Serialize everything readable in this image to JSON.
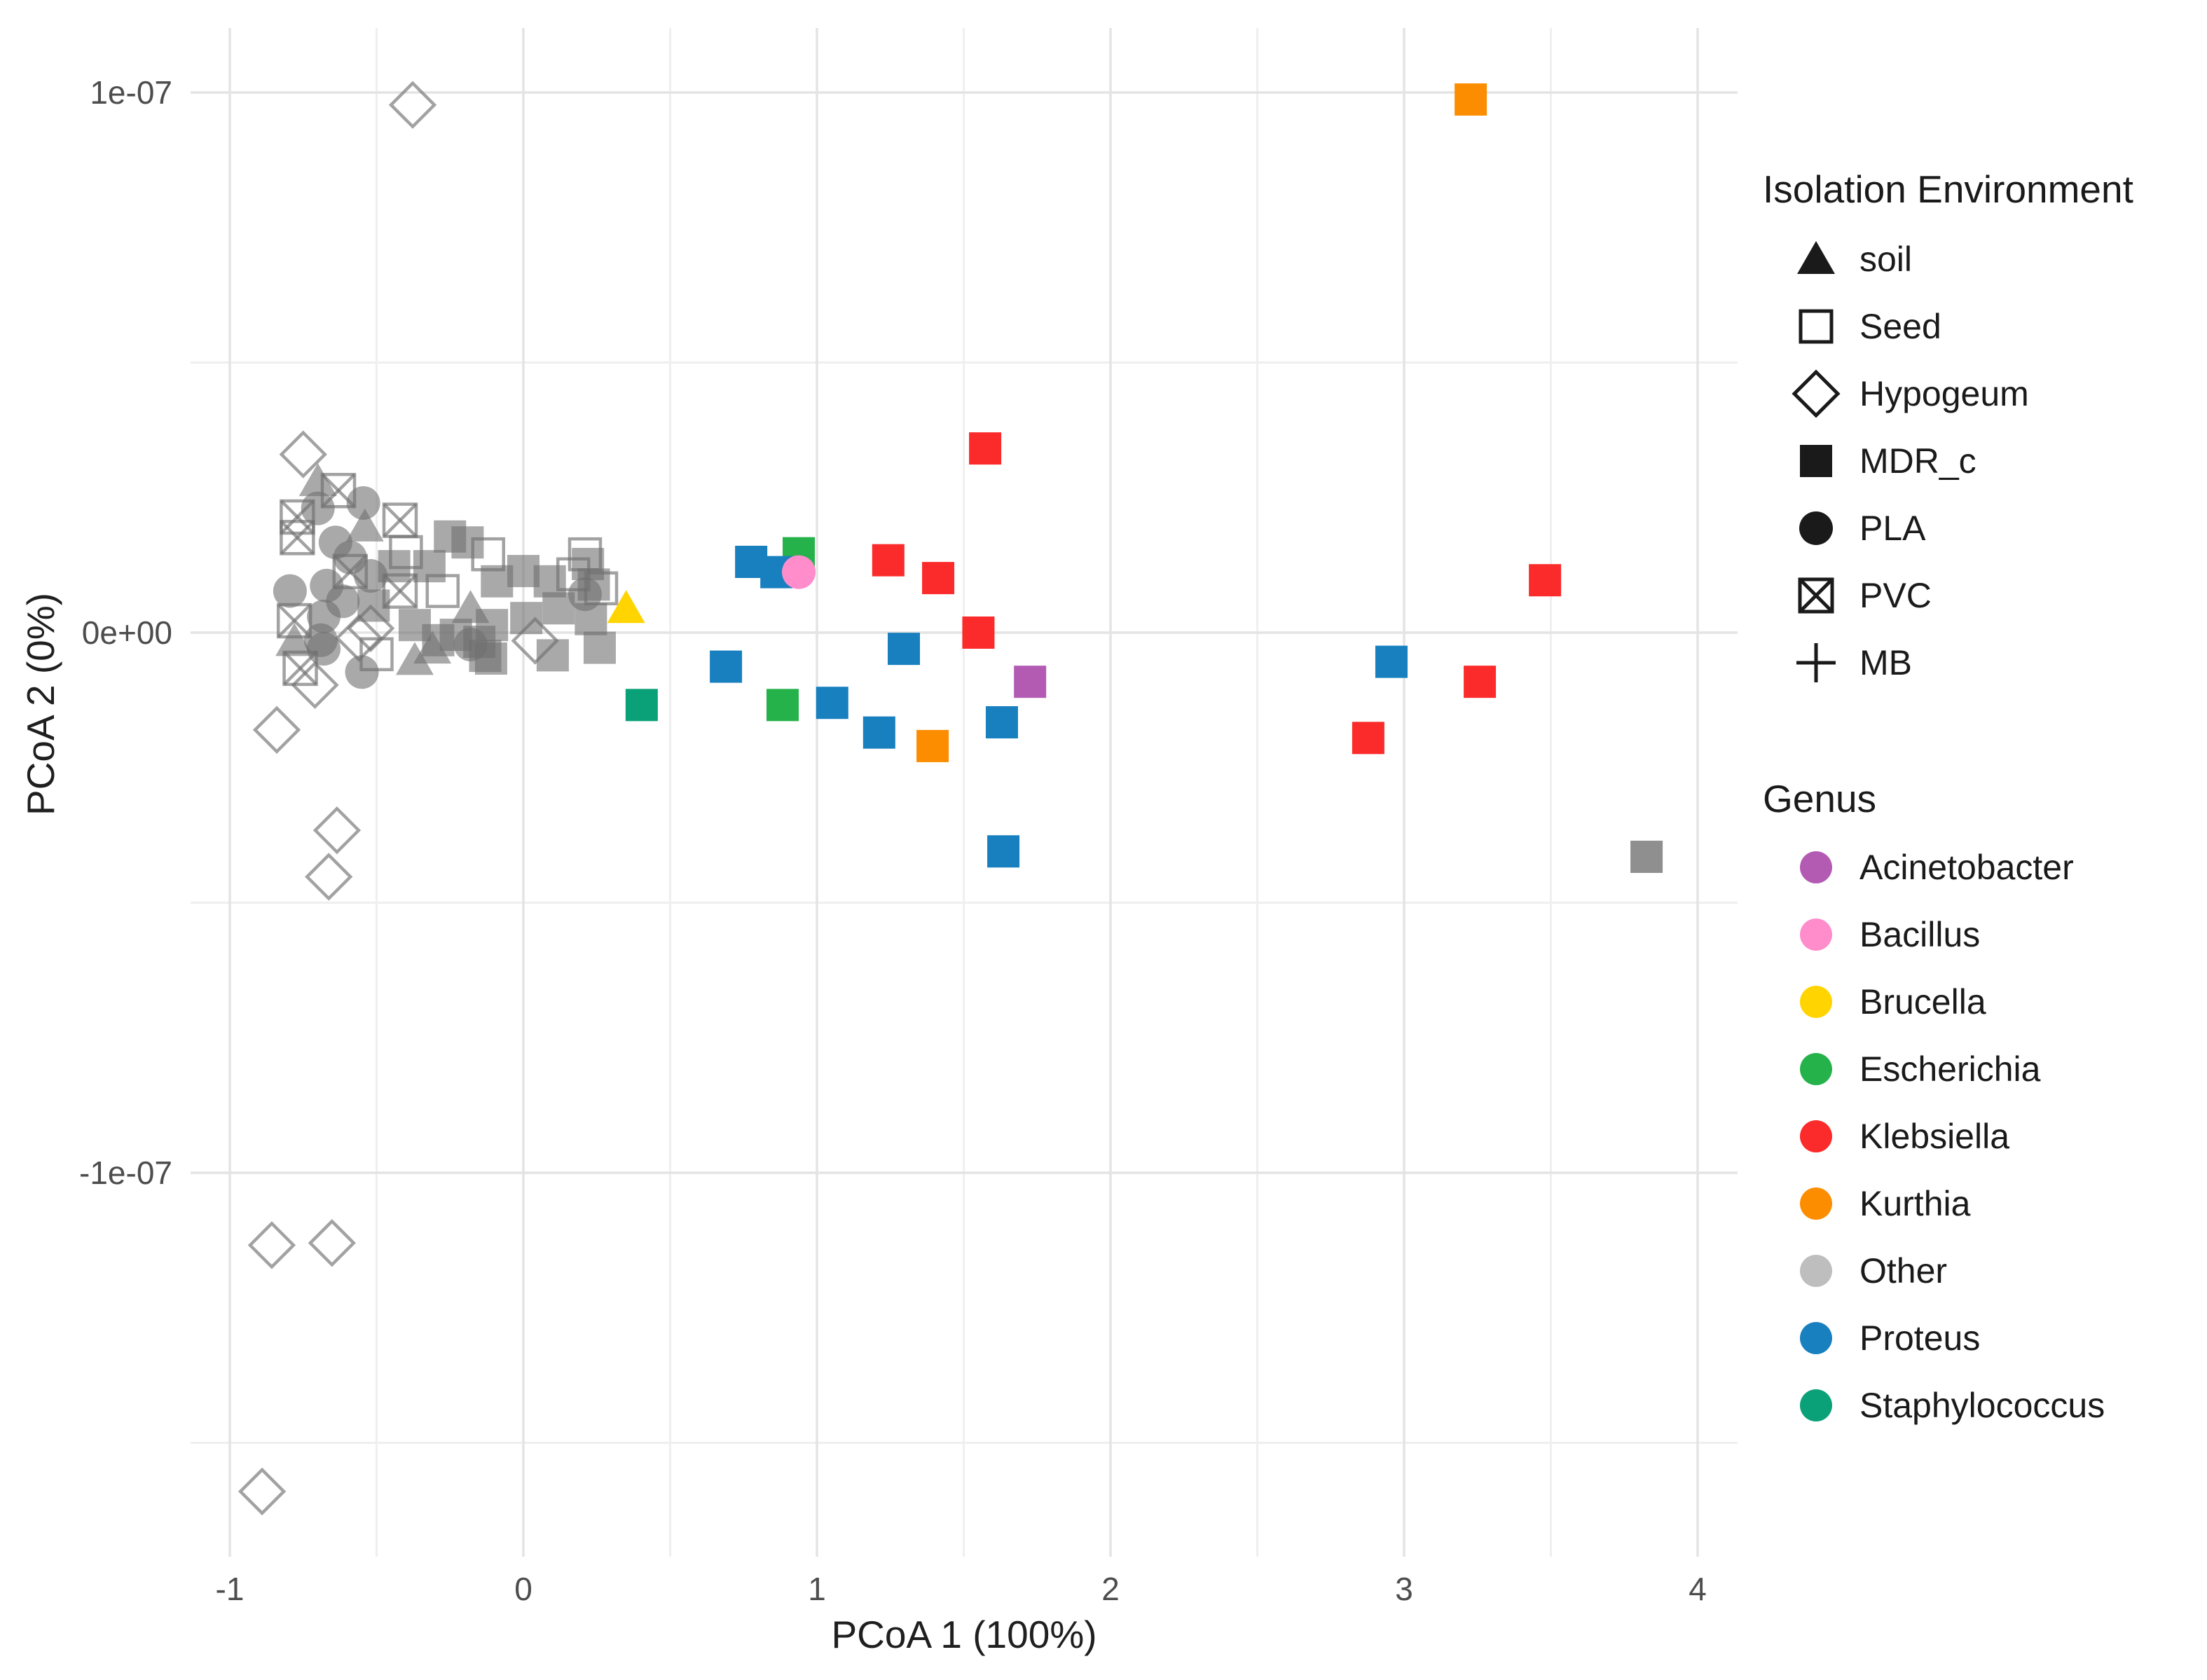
{
  "figure": {
    "background": "#ffffff"
  },
  "axes": {
    "x": {
      "title": "PCoA 1 (100%)",
      "tick_labels": [
        "-1",
        "0",
        "1",
        "2",
        "3",
        "4"
      ],
      "tick_values": [
        -1,
        0,
        1,
        2,
        3,
        4
      ]
    },
    "y": {
      "title": "PCoA 2 (0%)",
      "tick_labels": [
        "1e-07",
        "0e+00",
        "-1e-07"
      ],
      "tick_values_1e7": [
        1,
        0,
        -1
      ]
    }
  },
  "legend": {
    "shape_legend": {
      "title": "Isolation Environment",
      "items": [
        {
          "label": "soil",
          "shape": "triangle"
        },
        {
          "label": "Seed",
          "shape": "open_square"
        },
        {
          "label": "Hypogeum",
          "shape": "diamond"
        },
        {
          "label": "MDR_c",
          "shape": "square"
        },
        {
          "label": "PLA",
          "shape": "circle"
        },
        {
          "label": "PVC",
          "shape": "crossed_square"
        },
        {
          "label": "MB",
          "shape": "plus"
        }
      ]
    },
    "color_legend": {
      "title": "Genus",
      "items": [
        {
          "label": "Acinetobacter",
          "color": "#B35BB3"
        },
        {
          "label": "Bacillus",
          "color": "#FF8CCB"
        },
        {
          "label": "Brucella",
          "color": "#FFD400"
        },
        {
          "label": "Escherichia",
          "color": "#26B24B"
        },
        {
          "label": "Klebsiella",
          "color": "#FB2B2B"
        },
        {
          "label": "Kurthia",
          "color": "#FC8D00"
        },
        {
          "label": "Other",
          "color": "#BEBEBE"
        },
        {
          "label": "Proteus",
          "color": "#1880BF"
        },
        {
          "label": "Staphylococcus",
          "color": "#0BA178"
        }
      ]
    }
  },
  "chart_data": {
    "type": "scatter",
    "title": "",
    "xlabel": "PCoA 1 (100%)",
    "ylabel": "PCoA 2 (0%)",
    "x_range": [
      -1.13,
      4.14
    ],
    "y_range_1e7": [
      -1.71,
      1.12
    ],
    "y_unit": "1e-07",
    "grid": true,
    "legend_position": "right",
    "x_ticks": [
      -1,
      0,
      1,
      2,
      3,
      4
    ],
    "x_minor_ticks": [
      -0.5,
      0.5,
      1.5,
      2.5,
      3.5
    ],
    "y_ticks_1e7": [
      1,
      0,
      -1
    ],
    "y_minor_ticks_1e7": [
      0.5,
      -0.5,
      -1.5
    ],
    "environment_shapes": {
      "soil": "triangle",
      "Seed": "open_square",
      "Hypogeum": "diamond",
      "MDR_c": "square",
      "PLA": "circle",
      "PVC": "crossed_square",
      "MB": "plus"
    },
    "style": {
      "cluster_fill": "rgba(112,112,112,0.60)",
      "cluster_stroke": "rgba(112,112,112,0.65)",
      "dark_gray": "#8F8F8F",
      "grid_major": "#E4E4E4",
      "grid_minor": "#EFEFEF"
    },
    "points": [
      {
        "x": 3.227,
        "y_1e7": 0.987,
        "genus": "Kurthia",
        "environment": "MDR_c"
      },
      {
        "x": 1.573,
        "y_1e7": 0.341,
        "genus": "Klebsiella",
        "environment": "MDR_c"
      },
      {
        "x": 0.776,
        "y_1e7": 0.131,
        "genus": "Proteus",
        "environment": "MDR_c"
      },
      {
        "x": 0.938,
        "y_1e7": 0.147,
        "genus": "Escherichia",
        "environment": "MDR_c"
      },
      {
        "x": 0.862,
        "y_1e7": 0.112,
        "genus": "Proteus",
        "environment": "MDR_c"
      },
      {
        "x": 0.938,
        "y_1e7": 0.112,
        "genus": "Bacillus",
        "environment": "PLA"
      },
      {
        "x": 1.243,
        "y_1e7": 0.134,
        "genus": "Klebsiella",
        "environment": "MDR_c"
      },
      {
        "x": 1.413,
        "y_1e7": 0.101,
        "genus": "Klebsiella",
        "environment": "MDR_c"
      },
      {
        "x": 0.35,
        "y_1e7": 0.045,
        "genus": "Brucella",
        "environment": "soil"
      },
      {
        "x": 1.55,
        "y_1e7": 0.0,
        "genus": "Klebsiella",
        "environment": "MDR_c"
      },
      {
        "x": 1.296,
        "y_1e7": -0.03,
        "genus": "Proteus",
        "environment": "MDR_c"
      },
      {
        "x": 0.69,
        "y_1e7": -0.063,
        "genus": "Proteus",
        "environment": "MDR_c"
      },
      {
        "x": 1.726,
        "y_1e7": -0.091,
        "genus": "Acinetobacter",
        "environment": "MDR_c"
      },
      {
        "x": 0.403,
        "y_1e7": -0.134,
        "genus": "Staphylococcus",
        "environment": "MDR_c"
      },
      {
        "x": 0.883,
        "y_1e7": -0.134,
        "genus": "Escherichia",
        "environment": "MDR_c"
      },
      {
        "x": 1.052,
        "y_1e7": -0.13,
        "genus": "Proteus",
        "environment": "MDR_c"
      },
      {
        "x": 1.212,
        "y_1e7": -0.185,
        "genus": "Proteus",
        "environment": "MDR_c"
      },
      {
        "x": 1.394,
        "y_1e7": -0.21,
        "genus": "Kurthia",
        "environment": "MDR_c"
      },
      {
        "x": 1.63,
        "y_1e7": -0.166,
        "genus": "Proteus",
        "environment": "MDR_c"
      },
      {
        "x": 1.635,
        "y_1e7": -0.405,
        "genus": "Proteus",
        "environment": "MDR_c"
      },
      {
        "x": 3.48,
        "y_1e7": 0.097,
        "genus": "Klebsiella",
        "environment": "MDR_c"
      },
      {
        "x": 2.957,
        "y_1e7": -0.054,
        "genus": "Proteus",
        "environment": "MDR_c"
      },
      {
        "x": 3.258,
        "y_1e7": -0.091,
        "genus": "Klebsiella",
        "environment": "MDR_c"
      },
      {
        "x": 2.878,
        "y_1e7": -0.195,
        "genus": "Klebsiella",
        "environment": "MDR_c"
      },
      {
        "x": 3.826,
        "y_1e7": -0.415,
        "genus": "Other",
        "environment": "MDR_c",
        "variant": "dark"
      },
      {
        "x": -0.377,
        "y_1e7": 0.977,
        "genus": "Other",
        "environment": "Hypogeum"
      },
      {
        "x": -0.75,
        "y_1e7": 0.33,
        "genus": "Other",
        "environment": "Hypogeum"
      },
      {
        "x": -0.52,
        "y_1e7": 0.008,
        "genus": "Other",
        "environment": "Hypogeum"
      },
      {
        "x": -0.56,
        "y_1e7": -0.01,
        "genus": "Other",
        "environment": "Hypogeum"
      },
      {
        "x": 0.04,
        "y_1e7": -0.015,
        "genus": "Other",
        "environment": "Hypogeum"
      },
      {
        "x": -0.71,
        "y_1e7": -0.097,
        "genus": "Other",
        "environment": "Hypogeum"
      },
      {
        "x": -0.84,
        "y_1e7": -0.18,
        "genus": "Other",
        "environment": "Hypogeum"
      },
      {
        "x": -0.635,
        "y_1e7": -0.366,
        "genus": "Other",
        "environment": "Hypogeum"
      },
      {
        "x": -0.663,
        "y_1e7": -0.452,
        "genus": "Other",
        "environment": "Hypogeum"
      },
      {
        "x": -0.857,
        "y_1e7": -1.134,
        "genus": "Other",
        "environment": "Hypogeum"
      },
      {
        "x": -0.652,
        "y_1e7": -1.13,
        "genus": "Other",
        "environment": "Hypogeum"
      },
      {
        "x": -0.89,
        "y_1e7": -1.59,
        "genus": "Other",
        "environment": "Hypogeum"
      },
      {
        "x": -0.7,
        "y_1e7": 0.28,
        "genus": "Other",
        "environment": "soil"
      },
      {
        "x": -0.54,
        "y_1e7": 0.196,
        "genus": "Other",
        "environment": "soil"
      },
      {
        "x": -0.18,
        "y_1e7": 0.045,
        "genus": "Other",
        "environment": "soil"
      },
      {
        "x": -0.78,
        "y_1e7": -0.016,
        "genus": "Other",
        "environment": "soil"
      },
      {
        "x": -0.37,
        "y_1e7": -0.051,
        "genus": "Other",
        "environment": "soil"
      },
      {
        "x": -0.31,
        "y_1e7": -0.03,
        "genus": "Other",
        "environment": "soil"
      },
      {
        "x": -0.63,
        "y_1e7": 0.263,
        "genus": "Other",
        "environment": "PVC"
      },
      {
        "x": -0.77,
        "y_1e7": 0.214,
        "genus": "Other",
        "environment": "PVC"
      },
      {
        "x": -0.42,
        "y_1e7": 0.208,
        "genus": "Other",
        "environment": "PVC"
      },
      {
        "x": -0.77,
        "y_1e7": 0.176,
        "genus": "Other",
        "environment": "PVC"
      },
      {
        "x": -0.59,
        "y_1e7": 0.113,
        "genus": "Other",
        "environment": "PVC"
      },
      {
        "x": -0.42,
        "y_1e7": 0.077,
        "genus": "Other",
        "environment": "PVC"
      },
      {
        "x": -0.78,
        "y_1e7": 0.022,
        "genus": "Other",
        "environment": "PVC"
      },
      {
        "x": -0.76,
        "y_1e7": -0.066,
        "genus": "Other",
        "environment": "PVC"
      },
      {
        "x": -0.545,
        "y_1e7": 0.24,
        "genus": "Other",
        "environment": "PLA"
      },
      {
        "x": -0.7,
        "y_1e7": 0.23,
        "genus": "Other",
        "environment": "PLA"
      },
      {
        "x": -0.64,
        "y_1e7": 0.167,
        "genus": "Other",
        "environment": "PLA"
      },
      {
        "x": -0.59,
        "y_1e7": 0.139,
        "genus": "Other",
        "environment": "PLA"
      },
      {
        "x": -0.52,
        "y_1e7": 0.105,
        "genus": "Other",
        "environment": "PLA"
      },
      {
        "x": -0.67,
        "y_1e7": 0.087,
        "genus": "Other",
        "environment": "PLA"
      },
      {
        "x": -0.615,
        "y_1e7": 0.058,
        "genus": "Other",
        "environment": "PLA"
      },
      {
        "x": -0.68,
        "y_1e7": 0.03,
        "genus": "Other",
        "environment": "PLA"
      },
      {
        "x": -0.69,
        "y_1e7": -0.014,
        "genus": "Other",
        "environment": "PLA"
      },
      {
        "x": -0.68,
        "y_1e7": -0.03,
        "genus": "Other",
        "environment": "PLA"
      },
      {
        "x": -0.795,
        "y_1e7": 0.077,
        "genus": "Other",
        "environment": "PLA"
      },
      {
        "x": -0.55,
        "y_1e7": -0.073,
        "genus": "Other",
        "environment": "PLA"
      },
      {
        "x": -0.18,
        "y_1e7": -0.022,
        "genus": "Other",
        "environment": "PLA"
      },
      {
        "x": 0.21,
        "y_1e7": 0.071,
        "genus": "Other",
        "environment": "PLA"
      },
      {
        "x": -0.12,
        "y_1e7": 0.145,
        "genus": "Other",
        "environment": "Seed"
      },
      {
        "x": 0.17,
        "y_1e7": 0.108,
        "genus": "Other",
        "environment": "Seed"
      },
      {
        "x": 0.21,
        "y_1e7": 0.145,
        "genus": "Other",
        "environment": "Seed"
      },
      {
        "x": -0.4,
        "y_1e7": 0.149,
        "genus": "Other",
        "environment": "Seed"
      },
      {
        "x": 0.265,
        "y_1e7": 0.082,
        "genus": "Other",
        "environment": "Seed"
      },
      {
        "x": -0.275,
        "y_1e7": 0.077,
        "genus": "Other",
        "environment": "Seed"
      },
      {
        "x": -0.5,
        "y_1e7": -0.04,
        "genus": "Other",
        "environment": "Seed"
      },
      {
        "x": -0.25,
        "y_1e7": 0.178,
        "genus": "Other",
        "environment": "MDR_c"
      },
      {
        "x": -0.19,
        "y_1e7": 0.167,
        "genus": "Other",
        "environment": "MDR_c"
      },
      {
        "x": -0.44,
        "y_1e7": 0.123,
        "genus": "Other",
        "environment": "MDR_c"
      },
      {
        "x": -0.32,
        "y_1e7": 0.123,
        "genus": "Other",
        "environment": "MDR_c"
      },
      {
        "x": -0.51,
        "y_1e7": 0.05,
        "genus": "Other",
        "environment": "MDR_c"
      },
      {
        "x": 0.0,
        "y_1e7": 0.114,
        "genus": "Other",
        "environment": "MDR_c"
      },
      {
        "x": -0.09,
        "y_1e7": 0.095,
        "genus": "Other",
        "environment": "MDR_c"
      },
      {
        "x": 0.09,
        "y_1e7": 0.095,
        "genus": "Other",
        "environment": "MDR_c"
      },
      {
        "x": 0.24,
        "y_1e7": 0.089,
        "genus": "Other",
        "environment": "MDR_c"
      },
      {
        "x": 0.12,
        "y_1e7": 0.045,
        "genus": "Other",
        "environment": "MDR_c"
      },
      {
        "x": 0.01,
        "y_1e7": 0.027,
        "genus": "Other",
        "environment": "MDR_c"
      },
      {
        "x": 0.22,
        "y_1e7": 0.127,
        "genus": "Other",
        "environment": "MDR_c"
      },
      {
        "x": 0.23,
        "y_1e7": 0.025,
        "genus": "Other",
        "environment": "MDR_c"
      },
      {
        "x": -0.107,
        "y_1e7": 0.014,
        "genus": "Other",
        "environment": "MDR_c"
      },
      {
        "x": -0.23,
        "y_1e7": -0.004,
        "genus": "Other",
        "environment": "MDR_c"
      },
      {
        "x": -0.15,
        "y_1e7": -0.017,
        "genus": "Other",
        "environment": "MDR_c"
      },
      {
        "x": -0.37,
        "y_1e7": 0.014,
        "genus": "Other",
        "environment": "MDR_c"
      },
      {
        "x": -0.29,
        "y_1e7": -0.014,
        "genus": "Other",
        "environment": "MDR_c"
      },
      {
        "x": -0.13,
        "y_1e7": -0.043,
        "genus": "Other",
        "environment": "MDR_c"
      },
      {
        "x": 0.1,
        "y_1e7": -0.042,
        "genus": "Other",
        "environment": "MDR_c"
      },
      {
        "x": 0.26,
        "y_1e7": -0.028,
        "genus": "Other",
        "environment": "MDR_c"
      },
      {
        "x": -0.11,
        "y_1e7": -0.048,
        "genus": "Other",
        "environment": "MDR_c"
      }
    ]
  }
}
